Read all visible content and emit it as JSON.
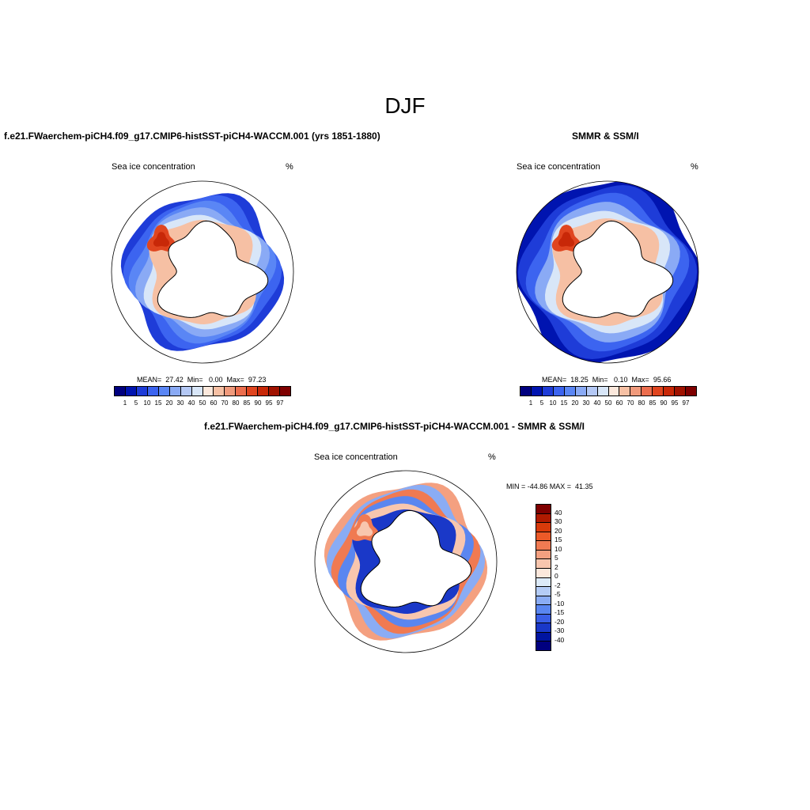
{
  "title": "DJF",
  "panels": [
    {
      "title": "f.e21.FWaerchem-piCH4.f09_g17.CMIP6-histSST-piCH4-WACCM.001 (yrs 1851-1880)",
      "variable": "Sea ice concentration",
      "units": "%",
      "stats": "MEAN=  27.42  Min=   0.00  Max=  97.23"
    },
    {
      "title": "SMMR & SSM/I",
      "variable": "Sea ice concentration",
      "units": "%",
      "stats": "MEAN=  18.25  Min=   0.10  Max=  95.66"
    },
    {
      "title": "f.e21.FWaerchem-piCH4.f09_g17.CMIP6-histSST-piCH4-WACCM.001 - SMMR & SSM/I",
      "variable": "Sea ice concentration",
      "units": "%",
      "stats": "MIN = -44.86 MAX =  41.35"
    }
  ],
  "colorbar_abs": {
    "labels": [
      "1",
      "5",
      "10",
      "15",
      "20",
      "30",
      "40",
      "50",
      "60",
      "70",
      "80",
      "85",
      "90",
      "95",
      "97"
    ],
    "colors": [
      "#00007f",
      "#0014b0",
      "#1e3cd8",
      "#3c64f0",
      "#5a86f5",
      "#8aaaf5",
      "#b4c8f5",
      "#d8e6f8",
      "#fbe8dc",
      "#f6c0a4",
      "#f09a7c",
      "#ec6e4e",
      "#e0451f",
      "#c82808",
      "#a01200",
      "#7f0000"
    ]
  },
  "colorbar_diff": {
    "labels": [
      "40",
      "30",
      "20",
      "15",
      "10",
      "5",
      "2",
      "0",
      "-2",
      "-5",
      "-10",
      "-15",
      "-20",
      "-30",
      "-40"
    ],
    "colors": [
      "#7f0000",
      "#b01a00",
      "#d83a0a",
      "#ec5a28",
      "#f07a52",
      "#f4a080",
      "#f8c6ae",
      "#fce8dc",
      "#dceaf8",
      "#b4ccf6",
      "#8aacf4",
      "#5a86f0",
      "#3a5ee6",
      "#1a38c8",
      "#0014a0",
      "#00007f"
    ]
  }
}
